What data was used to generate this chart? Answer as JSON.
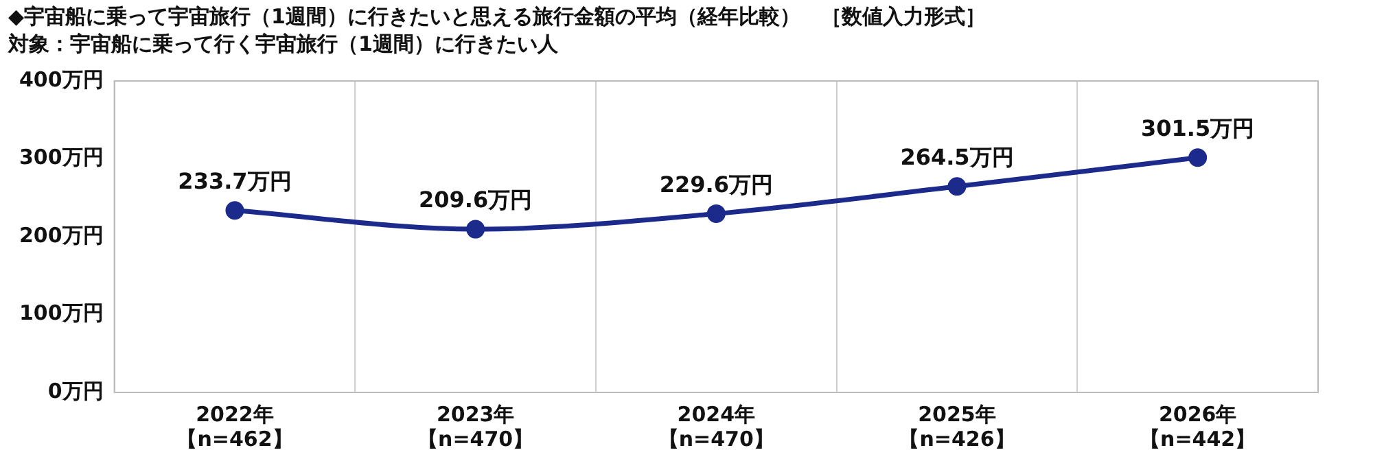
{
  "chart_data": {
    "type": "line",
    "title": "◆宇宙船に乗って宇宙旅行（1週間）に行きたいと思える旅行金額の平均（経年比較）　［数値入力形式］",
    "subtitle": "対象：宇宙船に乗って行く宇宙旅行（1週間）に行きたい人",
    "categories": [
      "2022年【n=462】",
      "2023年【n=470】",
      "2024年【n=470】",
      "2025年【n=426】",
      "2026年【n=442】"
    ],
    "series": [
      {
        "color": "#1c2a8c",
        "values": [
          233.7,
          209.6,
          229.6,
          264.5,
          301.5
        ],
        "value_labels": [
          "233.7万円",
          "209.6万円",
          "229.6万円",
          "264.5万円",
          "301.5万円"
        ]
      }
    ],
    "ylim": [
      0,
      400
    ],
    "yticks": [
      {
        "value": 0,
        "label": "0万円"
      },
      {
        "value": 100,
        "label": "100万円"
      },
      {
        "value": 200,
        "label": "200万円"
      },
      {
        "value": 300,
        "label": "300万円"
      },
      {
        "value": 400,
        "label": "400万円"
      }
    ],
    "grid": "x",
    "legend": false,
    "marker": "circle",
    "line_style": "solid"
  }
}
